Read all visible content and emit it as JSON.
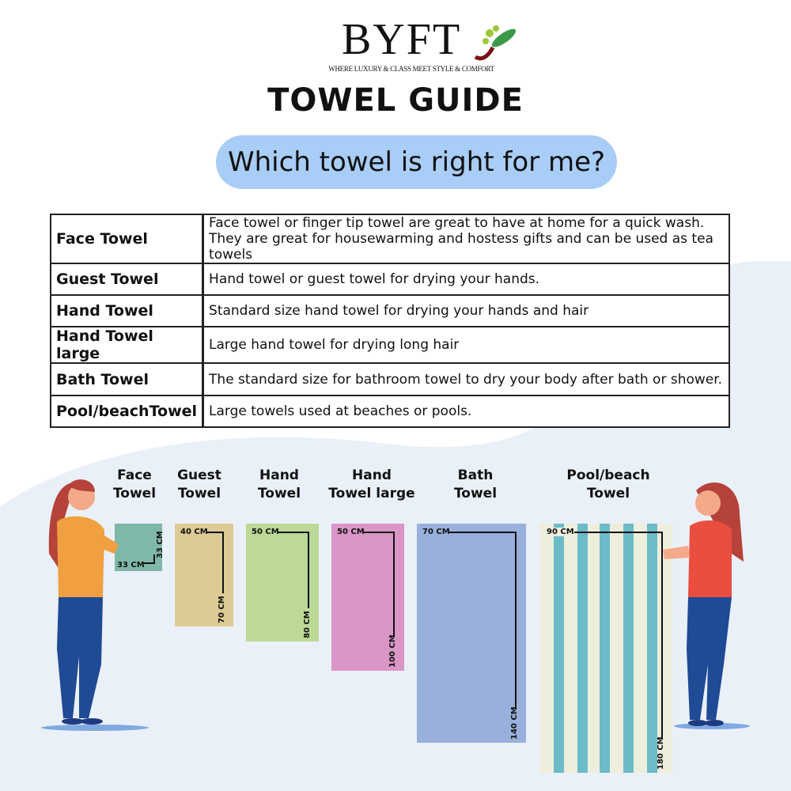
{
  "brand": {
    "name": "BYFT",
    "tagline": "WHERE LUXURY & CLASS MEET STYLE & COMFORT",
    "leaf_colors": [
      "#9bc93a",
      "#3a9a4a",
      "#7a1010"
    ]
  },
  "title": "TOWEL GUIDE",
  "subtitle": "Which towel is right for me?",
  "table": [
    {
      "name": "Face Towel",
      "desc": "Face towel or finger tip towel are great to have at home for a quick wash. They are great for housewarming and hostess gifts and can be used as tea towels"
    },
    {
      "name": "Guest Towel",
      "desc": "Hand towel or guest towel for drying your hands."
    },
    {
      "name": "Hand Towel",
      "desc": "Standard size hand towel for drying your hands and hair"
    },
    {
      "name": "Hand Towel large",
      "desc": "Large hand towel for drying long hair"
    },
    {
      "name": "Bath Towel",
      "desc": "The standard size for bathroom towel to dry your body after bath or shower."
    },
    {
      "name": "Pool/beachTowel",
      "desc": "Large towels used at beaches or pools."
    }
  ],
  "towels": [
    {
      "label1": "Face",
      "label2": "Towel",
      "width": "33 CM",
      "length": "33 CM",
      "color": "#7fb8a8"
    },
    {
      "label1": "Guest",
      "label2": "Towel",
      "width": "40 CM",
      "length": "70 CM",
      "color": "#dccb94"
    },
    {
      "label1": "Hand",
      "label2": "Towel",
      "width": "50 CM",
      "length": "80 CM",
      "color": "#bcd998"
    },
    {
      "label1": "Hand",
      "label2": "Towel large",
      "width": "50 CM",
      "length": "100 CM",
      "color": "#da96c7"
    },
    {
      "label1": "Bath",
      "label2": "Towel",
      "width": "70 CM",
      "length": "140 CM",
      "color": "#98b0db"
    },
    {
      "label1": "Pool/beach",
      "label2": "Towel",
      "width": "90 CM",
      "length": "180 CM",
      "color": "#eeeedd",
      "stripe_color": "#6bbcc8"
    }
  ]
}
